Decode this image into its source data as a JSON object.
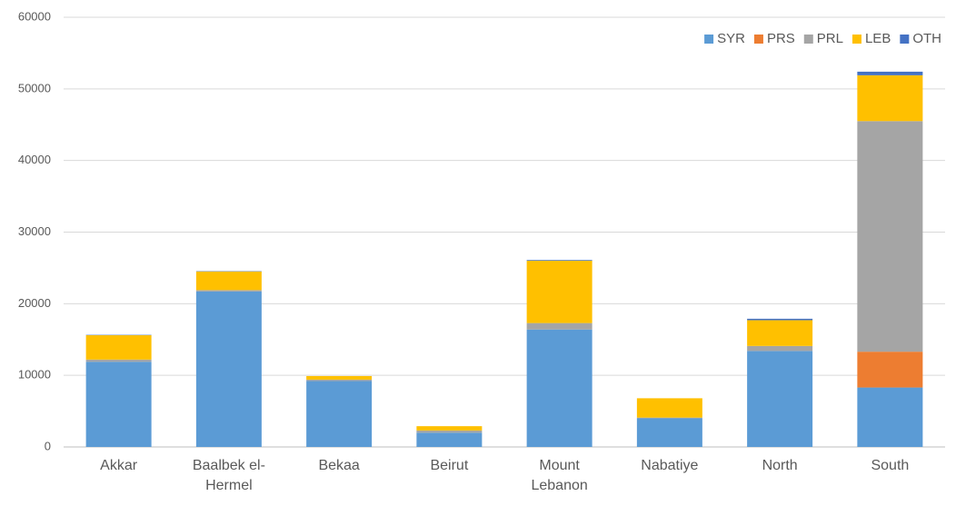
{
  "chart_data": {
    "type": "stacked_bar",
    "categories": [
      "Akkar",
      "Baalbek el-Hermel",
      "Bekaa",
      "Beirut",
      "Mount Lebanon",
      "Nabatiye",
      "North",
      "South"
    ],
    "series": [
      {
        "name": "SYR",
        "color": "#5b9bd5",
        "values": [
          11900,
          21700,
          9200,
          2000,
          16400,
          4000,
          13400,
          8300
        ]
      },
      {
        "name": "PRS",
        "color": "#ed7d31",
        "values": [
          0,
          0,
          0,
          0,
          0,
          0,
          0,
          5000
        ]
      },
      {
        "name": "PRL",
        "color": "#a5a5a5",
        "values": [
          300,
          200,
          200,
          300,
          900,
          100,
          700,
          32200
        ]
      },
      {
        "name": "LEB",
        "color": "#ffc000",
        "values": [
          3400,
          2600,
          500,
          600,
          8700,
          2700,
          3600,
          6400
        ]
      },
      {
        "name": "OTH",
        "color": "#4472c4",
        "values": [
          50,
          50,
          0,
          0,
          100,
          0,
          200,
          500
        ]
      }
    ],
    "ylim": [
      0,
      60000
    ],
    "yticks": [
      0,
      10000,
      20000,
      30000,
      40000,
      50000,
      60000
    ],
    "grid": true,
    "legend": "top-right"
  }
}
